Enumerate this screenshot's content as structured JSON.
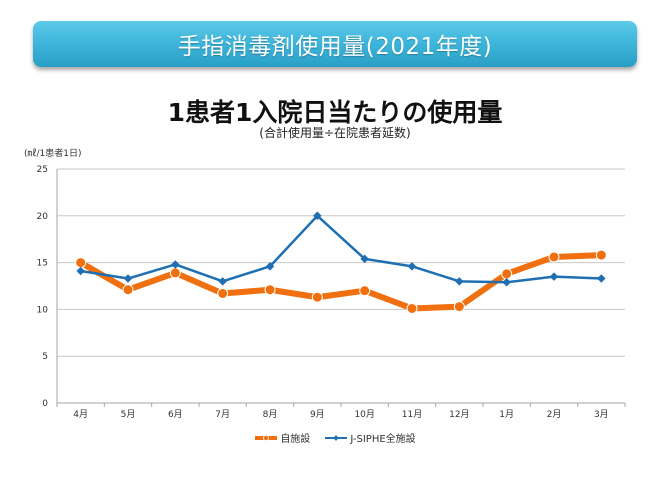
{
  "banner": {
    "title": "手指消毒剤使用量(2021年度)"
  },
  "chart_data": {
    "type": "line",
    "title": "1患者1入院日当たりの使用量",
    "subtitle": "(合計使用量÷在院患者延数)",
    "ylabel": "(㎖/1患者1日)",
    "xlabel": "",
    "categories": [
      "4月",
      "5月",
      "6月",
      "7月",
      "8月",
      "9月",
      "10月",
      "11月",
      "12月",
      "1月",
      "2月",
      "3月"
    ],
    "ylim": [
      0,
      25
    ],
    "yticks": [
      0,
      5,
      10,
      15,
      20,
      25
    ],
    "grid": true,
    "legend_position": "bottom",
    "series": [
      {
        "name": "自施設",
        "color": "#f07010",
        "marker": "circle",
        "values": [
          15.0,
          12.1,
          13.9,
          11.7,
          12.1,
          11.3,
          12.0,
          10.1,
          10.3,
          13.8,
          15.6,
          15.8
        ]
      },
      {
        "name": "J-SIPHE全施設",
        "color": "#1f6fb2",
        "marker": "diamond",
        "values": [
          14.1,
          13.3,
          14.8,
          13.0,
          14.6,
          20.0,
          15.4,
          14.6,
          13.0,
          12.9,
          13.5,
          13.3
        ]
      }
    ]
  }
}
